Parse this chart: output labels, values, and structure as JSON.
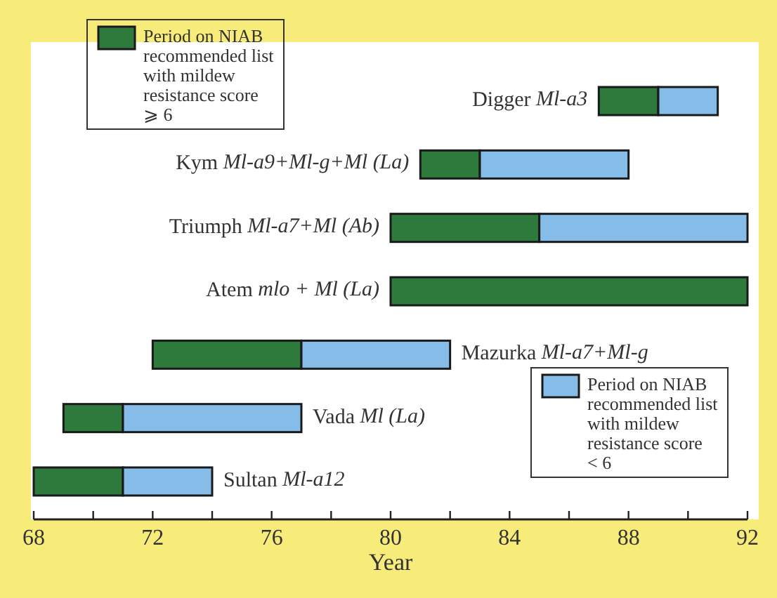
{
  "chart_data": {
    "type": "bar",
    "orientation": "horizontal",
    "xlabel": "Year",
    "categories": [
      "Digger Ml-a3",
      "Kym Ml-a9+Ml-g+Ml (La)",
      "Triumph Ml-a7+Ml (Ab)",
      "Atem mlo + Ml (La)",
      "Mazurka Ml-a7+Ml-g",
      "Vada Ml (La)",
      "Sultan Ml-a12"
    ],
    "series": [
      {
        "name": "Period on NIAB recommended list with mildew resistance score ⩾ 6",
        "color": "#2e7a3c",
        "base": [
          87,
          81,
          80,
          80,
          72,
          69,
          68
        ],
        "values": [
          2,
          2,
          5,
          12,
          5,
          2,
          3
        ]
      },
      {
        "name": "Period on NIAB recommended list with mildew resistance score < 6",
        "color": "#86bde8",
        "base": [
          89,
          83,
          85,
          null,
          77,
          71,
          71
        ],
        "values": [
          2,
          5,
          7,
          null,
          5,
          6,
          3
        ]
      }
    ],
    "xlim": [
      68,
      92
    ],
    "xticks": [
      68,
      {
        "value": 70,
        "label": null
      },
      72,
      {
        "value": 74,
        "label": null
      },
      76,
      {
        "value": 78,
        "label": null
      },
      80,
      {
        "value": 82,
        "label": null
      },
      84,
      {
        "value": 86,
        "label": null
      },
      88,
      {
        "value": 90,
        "label": null
      },
      92
    ],
    "legend": "top left",
    "grid": false
  }
}
